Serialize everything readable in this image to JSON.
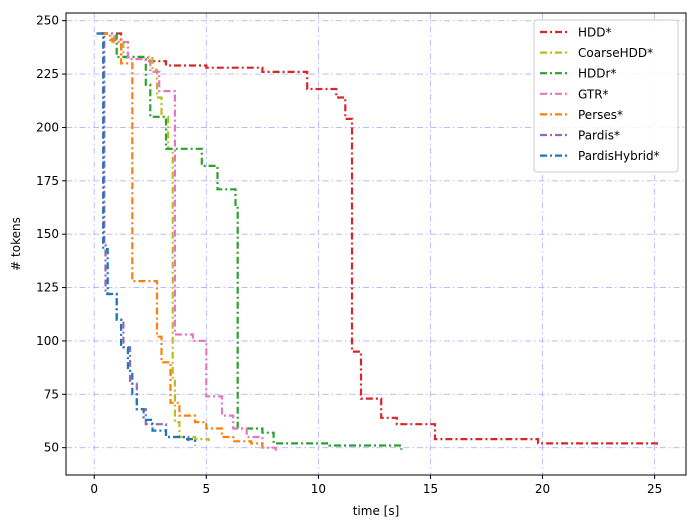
{
  "chart_data": {
    "type": "line",
    "style": "step",
    "title": "",
    "xlabel": "time [s]",
    "ylabel": "# tokens",
    "xlim": [
      -1.26,
      26.4
    ],
    "ylim": [
      37.2,
      253.6
    ],
    "xticks": [
      0,
      5,
      10,
      15,
      20,
      25
    ],
    "yticks": [
      50,
      75,
      100,
      125,
      150,
      175,
      200,
      225,
      250
    ],
    "grid": true,
    "grid_style": "dash-dot, light blue",
    "legend_position": "top-right",
    "line_style": "dash-dot",
    "series": [
      {
        "name": "HDD*",
        "color": "#d62728",
        "points": [
          [
            0.3,
            244
          ],
          [
            1.2,
            244
          ],
          [
            1.2,
            233
          ],
          [
            2.4,
            233
          ],
          [
            2.4,
            231
          ],
          [
            3.2,
            231
          ],
          [
            3.2,
            229
          ],
          [
            5.0,
            229
          ],
          [
            5.0,
            228
          ],
          [
            7.5,
            228
          ],
          [
            7.5,
            226
          ],
          [
            9.5,
            226
          ],
          [
            9.5,
            218
          ],
          [
            10.8,
            218
          ],
          [
            10.8,
            214
          ],
          [
            11.2,
            214
          ],
          [
            11.2,
            204
          ],
          [
            11.5,
            204
          ],
          [
            11.5,
            95
          ],
          [
            11.9,
            95
          ],
          [
            11.9,
            73
          ],
          [
            12.8,
            73
          ],
          [
            12.8,
            64
          ],
          [
            13.5,
            64
          ],
          [
            13.5,
            61
          ],
          [
            15.2,
            61
          ],
          [
            15.2,
            54
          ],
          [
            19.8,
            54
          ],
          [
            19.8,
            52
          ],
          [
            25.1,
            52
          ],
          [
            25.1,
            50
          ]
        ]
      },
      {
        "name": "CoarseHDD*",
        "color": "#bcbd22",
        "points": [
          [
            0.3,
            244
          ],
          [
            0.8,
            244
          ],
          [
            0.8,
            240
          ],
          [
            1.3,
            240
          ],
          [
            1.3,
            233
          ],
          [
            2.6,
            233
          ],
          [
            2.6,
            227
          ],
          [
            2.8,
            227
          ],
          [
            2.8,
            214
          ],
          [
            3.0,
            214
          ],
          [
            3.0,
            205
          ],
          [
            3.3,
            205
          ],
          [
            3.3,
            190
          ],
          [
            3.5,
            190
          ],
          [
            3.5,
            82
          ],
          [
            3.6,
            82
          ],
          [
            3.6,
            62
          ],
          [
            3.8,
            62
          ],
          [
            3.8,
            55
          ],
          [
            4.5,
            55
          ],
          [
            4.5,
            54
          ],
          [
            5.1,
            54
          ],
          [
            5.1,
            53
          ]
        ]
      },
      {
        "name": "HDDr*",
        "color": "#2ca02c",
        "points": [
          [
            0.3,
            244
          ],
          [
            1.0,
            244
          ],
          [
            1.0,
            233
          ],
          [
            2.3,
            233
          ],
          [
            2.3,
            220
          ],
          [
            2.5,
            220
          ],
          [
            2.5,
            205
          ],
          [
            3.2,
            205
          ],
          [
            3.2,
            190
          ],
          [
            4.8,
            190
          ],
          [
            4.8,
            182
          ],
          [
            5.5,
            182
          ],
          [
            5.5,
            171
          ],
          [
            6.3,
            171
          ],
          [
            6.3,
            163
          ],
          [
            6.4,
            163
          ],
          [
            6.4,
            59
          ],
          [
            7.5,
            59
          ],
          [
            7.5,
            57
          ],
          [
            8.0,
            57
          ],
          [
            8.0,
            52
          ],
          [
            10.5,
            52
          ],
          [
            10.5,
            51
          ],
          [
            13.7,
            51
          ],
          [
            13.7,
            49
          ]
        ]
      },
      {
        "name": "GTR*",
        "color": "#e377c2",
        "points": [
          [
            0.3,
            244
          ],
          [
            0.9,
            244
          ],
          [
            0.9,
            240
          ],
          [
            1.5,
            240
          ],
          [
            1.5,
            232
          ],
          [
            2.5,
            232
          ],
          [
            2.5,
            226
          ],
          [
            2.9,
            226
          ],
          [
            2.9,
            217
          ],
          [
            3.6,
            217
          ],
          [
            3.6,
            103
          ],
          [
            4.4,
            103
          ],
          [
            4.4,
            100
          ],
          [
            5.0,
            100
          ],
          [
            5.0,
            74
          ],
          [
            5.7,
            74
          ],
          [
            5.7,
            65
          ],
          [
            6.2,
            65
          ],
          [
            6.2,
            59
          ],
          [
            6.8,
            59
          ],
          [
            6.8,
            55
          ],
          [
            7.5,
            55
          ],
          [
            7.5,
            50
          ],
          [
            8.1,
            50
          ],
          [
            8.1,
            48
          ]
        ]
      },
      {
        "name": "Perses*",
        "color": "#ff7f0e",
        "points": [
          [
            0.3,
            244
          ],
          [
            0.7,
            244
          ],
          [
            0.7,
            241
          ],
          [
            1.2,
            241
          ],
          [
            1.2,
            230
          ],
          [
            1.7,
            230
          ],
          [
            1.7,
            128
          ],
          [
            2.8,
            128
          ],
          [
            2.8,
            102
          ],
          [
            3.0,
            102
          ],
          [
            3.0,
            90
          ],
          [
            3.4,
            90
          ],
          [
            3.4,
            71
          ],
          [
            3.8,
            71
          ],
          [
            3.8,
            65
          ],
          [
            4.5,
            65
          ],
          [
            4.5,
            62
          ],
          [
            5.0,
            62
          ],
          [
            5.0,
            59
          ],
          [
            5.7,
            59
          ],
          [
            5.7,
            55
          ],
          [
            6.2,
            55
          ],
          [
            6.2,
            53
          ],
          [
            7.0,
            53
          ],
          [
            7.0,
            52
          ],
          [
            7.5,
            52
          ],
          [
            7.5,
            50
          ]
        ]
      },
      {
        "name": "Pardis*",
        "color": "#9467bd",
        "points": [
          [
            0.1,
            244
          ],
          [
            0.45,
            244
          ],
          [
            0.45,
            145
          ],
          [
            0.5,
            145
          ],
          [
            0.5,
            122
          ],
          [
            1.0,
            122
          ],
          [
            1.0,
            110
          ],
          [
            1.3,
            110
          ],
          [
            1.3,
            97
          ],
          [
            1.6,
            97
          ],
          [
            1.6,
            80
          ],
          [
            1.9,
            80
          ],
          [
            1.9,
            68
          ],
          [
            2.3,
            68
          ],
          [
            2.3,
            61
          ],
          [
            3.2,
            61
          ],
          [
            3.2,
            55
          ],
          [
            4.2,
            55
          ],
          [
            4.2,
            53
          ]
        ]
      },
      {
        "name": "PardisHybrid*",
        "color": "#1f77b4",
        "points": [
          [
            0.1,
            244
          ],
          [
            0.4,
            244
          ],
          [
            0.4,
            143
          ],
          [
            0.6,
            143
          ],
          [
            0.6,
            122
          ],
          [
            1.0,
            122
          ],
          [
            1.0,
            110
          ],
          [
            1.2,
            110
          ],
          [
            1.2,
            97
          ],
          [
            1.5,
            97
          ],
          [
            1.5,
            86
          ],
          [
            1.7,
            86
          ],
          [
            1.7,
            75
          ],
          [
            1.9,
            75
          ],
          [
            1.9,
            68
          ],
          [
            2.2,
            68
          ],
          [
            2.2,
            63
          ],
          [
            2.6,
            63
          ],
          [
            2.6,
            58
          ],
          [
            3.2,
            58
          ],
          [
            3.2,
            55
          ],
          [
            4.0,
            55
          ],
          [
            4.0,
            54
          ],
          [
            4.5,
            54
          ],
          [
            4.5,
            51
          ]
        ]
      }
    ]
  }
}
